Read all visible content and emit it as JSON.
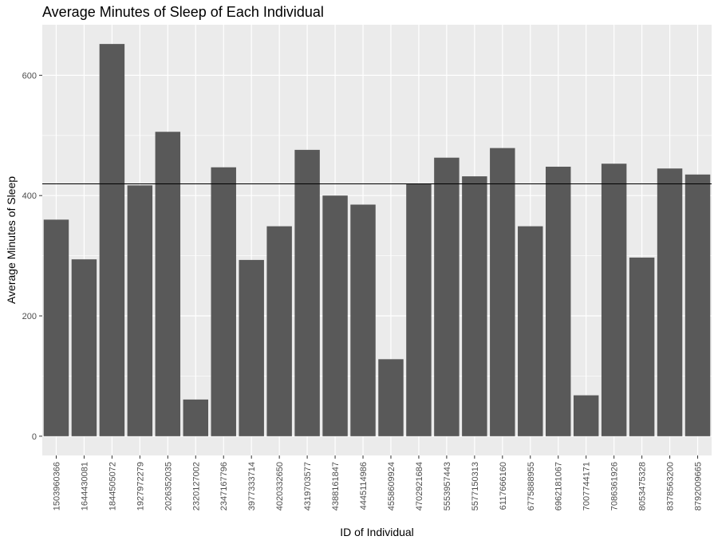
{
  "chart_data": {
    "type": "bar",
    "title": "Average Minutes of Sleep of Each Individual",
    "xlabel": "ID of Individual",
    "ylabel": "Average Minutes of Sleep",
    "categories": [
      "1503960366",
      "1644430081",
      "1844505072",
      "1927972279",
      "2026352035",
      "2320127002",
      "2347167796",
      "3977333714",
      "4020332650",
      "4319703577",
      "4388161847",
      "4445114986",
      "4558609924",
      "4702921684",
      "5553957443",
      "5577150313",
      "6117666160",
      "6775888955",
      "6962181067",
      "7007744171",
      "7086361926",
      "8053475328",
      "8378563200",
      "8792009665"
    ],
    "values": [
      360,
      294,
      652,
      417,
      506,
      61,
      447,
      293,
      349,
      476,
      400,
      385,
      128,
      419,
      463,
      432,
      479,
      349,
      448,
      68,
      453,
      297,
      445,
      435
    ],
    "reference_line": 419.5,
    "yticks": [
      0,
      200,
      400,
      600
    ],
    "ylim": [
      -32,
      684
    ],
    "grid": true,
    "colors": {
      "bar": "#595959",
      "panel": "#ebebeb",
      "grid": "#ffffff",
      "hline": "#000000"
    }
  }
}
